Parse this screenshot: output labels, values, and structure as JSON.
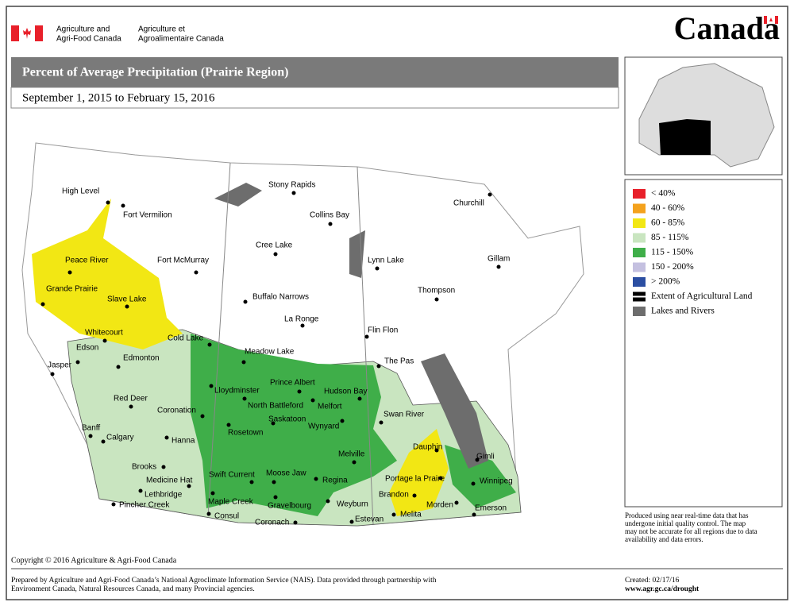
{
  "header": {
    "dept_en": [
      "Agriculture and",
      "Agri-Food Canada"
    ],
    "dept_fr": [
      "Agriculture et",
      "Agroalimentaire Canada"
    ],
    "wordmark": "Canada"
  },
  "title": "Percent of Average Precipitation (Prairie Region)",
  "subtitle": "September 1, 2015 to February 15, 2016",
  "legend": [
    {
      "label": "< 40%",
      "color": "#e8202a"
    },
    {
      "label": "40 - 60%",
      "color": "#f4a21d"
    },
    {
      "label": "60 - 85%",
      "color": "#f2e714"
    },
    {
      "label": "85 - 115%",
      "color": "#c9e5c0"
    },
    {
      "label": "115 - 150%",
      "color": "#3fae49"
    },
    {
      "label": "150 - 200%",
      "color": "#c4c0e0"
    },
    {
      "label": "> 200%",
      "color": "#2b4ea2"
    },
    {
      "label": "Extent of Agricultural Land",
      "color": "#000000"
    },
    {
      "label": "Lakes and Rivers",
      "color": "#6d6d6d"
    }
  ],
  "cities": [
    "High Level",
    "Fort Vermilion",
    "Peace River",
    "Fort McMurray",
    "Grande Prairie",
    "Slave Lake",
    "Whitecourt",
    "Edson",
    "Cold Lake",
    "Jasper",
    "Edmonton",
    "Meadow Lake",
    "Lloydminster",
    "Red Deer",
    "Coronation",
    "Banff",
    "Calgary",
    "Hanna",
    "Brooks",
    "Medicine Hat",
    "Lethbridge",
    "Pincher Creek",
    "Stony Rapids",
    "Collins Bay",
    "Cree Lake",
    "Buffalo Narrows",
    "La Ronge",
    "Prince Albert",
    "North Battleford",
    "Hudson Bay",
    "Melfort",
    "Saskatoon",
    "Wynyard",
    "Rosetown",
    "Swift Current",
    "Moose Jaw",
    "Regina",
    "Maple Creek",
    "Gravelbourg",
    "Weyburn",
    "Consul",
    "Coronach",
    "Estevan",
    "Melville",
    "Churchill",
    "Lynn Lake",
    "Gillam",
    "Thompson",
    "Flin Flon",
    "The Pas",
    "Swan River",
    "Dauphin",
    "Gimli",
    "Portage la Praire",
    "Winnipeg",
    "Brandon",
    "Morden",
    "Melita",
    "Emerson"
  ],
  "note": [
    "Produced using near real-time data that has",
    "undergone initial quality control.  The map",
    "may not be accurate for all regions due to data",
    "availability and data errors."
  ],
  "copyright": "Copyright © 2016 Agriculture & Agri-Food Canada",
  "footer": {
    "prepared": [
      "Prepared by Agriculture and Agri-Food Canada’s National Agroclimate Information Service (NAIS).   Data provided through partnership with",
      "Environment Canada, Natural Resources Canada, and many Provincial agencies."
    ],
    "created": "Created: 02/17/16",
    "url": "www.agr.gc.ca/drought"
  }
}
